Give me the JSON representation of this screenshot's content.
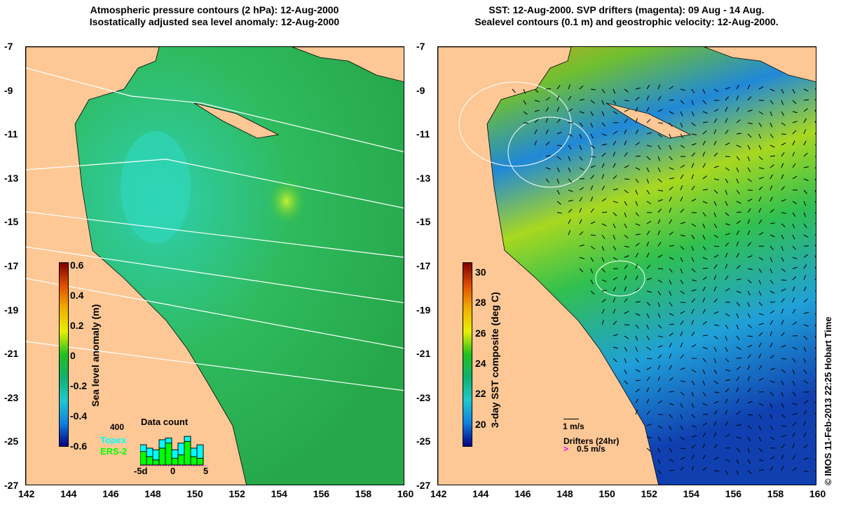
{
  "left": {
    "title_lines": [
      "Atmospheric pressure contours (2 hPa): 12-Aug-2000",
      "Isostatically adjusted sea level anomaly: 12-Aug-2000"
    ],
    "colorbar": {
      "label": "Sea level anomaly (m)",
      "ticks": [
        "0.6",
        "0.4",
        "0.2",
        "0",
        "-0.2",
        "-0.4",
        "-0.6"
      ]
    },
    "inset": {
      "title": "Data count",
      "ymax_label": "400",
      "series": [
        "Topex",
        "ERS-2"
      ],
      "xticks": [
        "-5d",
        "0",
        "5"
      ],
      "topex": [
        0.6,
        0.5,
        0.45,
        0.75,
        0.8,
        0.45,
        0.65,
        0.85,
        0.5,
        0.6
      ],
      "ers2": [
        0.4,
        0.25,
        0.15,
        0.5,
        0.65,
        0.2,
        0.3,
        0.7,
        0.25,
        0.2
      ]
    }
  },
  "right": {
    "title_lines": [
      "SST: 12-Aug-2000. SVP drifters (magenta): 09 Aug - 14 Aug.",
      "Sealevel contours (0.1 m) and geostrophic velocity: 12-Aug-2000."
    ],
    "colorbar": {
      "label": "3-day SST composite (deg C)",
      "ticks": [
        "30",
        "28",
        "26",
        "24",
        "22",
        "20"
      ]
    },
    "vector_scale": "1 m/s",
    "drifters_label": "Drifters (24hr)",
    "drifter_scale": "0.5 m/s"
  },
  "axes": {
    "x_ticks": [
      "142",
      "144",
      "146",
      "148",
      "150",
      "152",
      "154",
      "156",
      "158",
      "160"
    ],
    "y_ticks": [
      "-7",
      "-9",
      "-11",
      "-13",
      "-15",
      "-17",
      "-19",
      "-21",
      "-23",
      "-25",
      "-27"
    ]
  },
  "credit": "© IMOS 11-Feb-2013 22:25 Hobart Time",
  "colors": {
    "land": "#fdc896",
    "ocean_left": "#2fbf4a",
    "ocean_right": "#33c04a",
    "magenta": "#ff00ff"
  }
}
